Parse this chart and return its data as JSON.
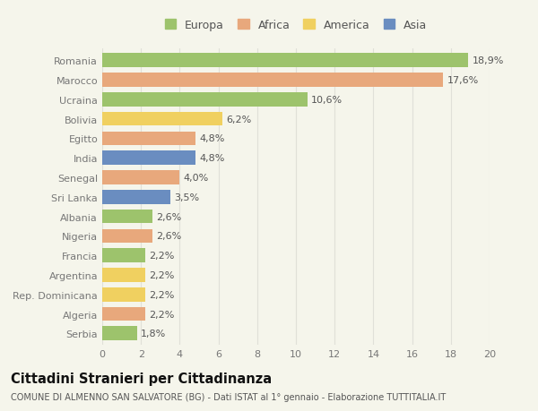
{
  "countries": [
    "Romania",
    "Marocco",
    "Ucraina",
    "Bolivia",
    "Egitto",
    "India",
    "Senegal",
    "Sri Lanka",
    "Albania",
    "Nigeria",
    "Francia",
    "Argentina",
    "Rep. Dominicana",
    "Algeria",
    "Serbia"
  ],
  "values": [
    18.9,
    17.6,
    10.6,
    6.2,
    4.8,
    4.8,
    4.0,
    3.5,
    2.6,
    2.6,
    2.2,
    2.2,
    2.2,
    2.2,
    1.8
  ],
  "labels": [
    "18,9%",
    "17,6%",
    "10,6%",
    "6,2%",
    "4,8%",
    "4,8%",
    "4,0%",
    "3,5%",
    "2,6%",
    "2,6%",
    "2,2%",
    "2,2%",
    "2,2%",
    "2,2%",
    "1,8%"
  ],
  "continents": [
    "Europa",
    "Africa",
    "Europa",
    "America",
    "Africa",
    "Asia",
    "Africa",
    "Asia",
    "Europa",
    "Africa",
    "Europa",
    "America",
    "America",
    "Africa",
    "Europa"
  ],
  "continent_colors": {
    "Europa": "#9dc36c",
    "Africa": "#e8a87c",
    "America": "#f0d060",
    "Asia": "#6a8dc0"
  },
  "legend_order": [
    "Europa",
    "Africa",
    "America",
    "Asia"
  ],
  "legend_colors": [
    "#9dc36c",
    "#e8a87c",
    "#f0d060",
    "#6a8dc0"
  ],
  "xlim": [
    0,
    20
  ],
  "xticks": [
    0,
    2,
    4,
    6,
    8,
    10,
    12,
    14,
    16,
    18,
    20
  ],
  "title": "Cittadini Stranieri per Cittadinanza",
  "subtitle": "COMUNE DI ALMENNO SAN SALVATORE (BG) - Dati ISTAT al 1° gennaio - Elaborazione TUTTITALIA.IT",
  "background_color": "#f5f5eb",
  "grid_color": "#e0e0d8",
  "bar_height": 0.72,
  "label_fontsize": 8.0,
  "tick_fontsize": 8.0,
  "title_fontsize": 10.5,
  "subtitle_fontsize": 7.0
}
